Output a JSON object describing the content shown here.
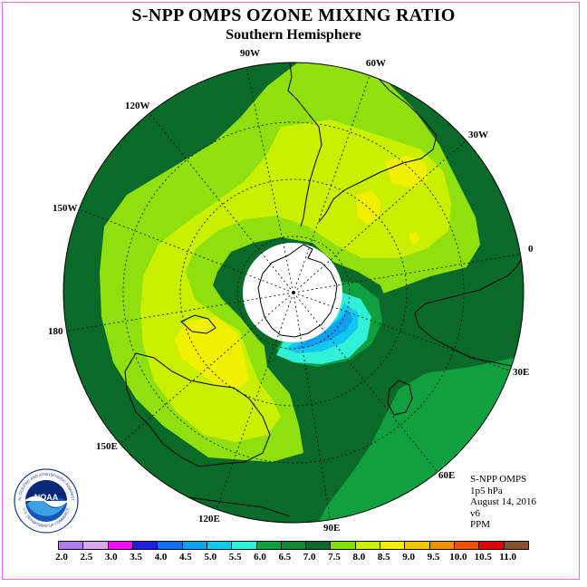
{
  "title": "S-NPP OMPS OZONE MIXING RATIO",
  "subtitle": "Southern Hemisphere",
  "longitude_labels": {
    "lon_90w": "90W",
    "lon_60w": "60W",
    "lon_120w": "120W",
    "lon_30w": "30W",
    "lon_150w": "150W",
    "lon_0": "0",
    "lon_180": "180",
    "lon_30e": "30E",
    "lon_150e": "150E",
    "lon_60e": "60E",
    "lon_120e": "120E",
    "lon_90e": "90E"
  },
  "info": {
    "product": "S-NPP OMPS",
    "level": "1p5 hPa",
    "date": "August 14, 2016",
    "version": "v6",
    "units": "PPM"
  },
  "logo": {
    "text": "NOAA",
    "ring_text": "NATIONAL OCEANIC AND ATMOSPHERIC ADMINISTRATION",
    "ring_text_bottom": "U.S. DEPARTMENT OF COMMERCE"
  },
  "colorbar": {
    "labels": [
      "2.0",
      "2.5",
      "3.0",
      "3.5",
      "4.0",
      "4.5",
      "5.0",
      "5.5",
      "6.0",
      "6.5",
      "7.0",
      "7.5",
      "8.0",
      "8.5",
      "9.0",
      "9.5",
      "10.0",
      "10.5",
      "11.0"
    ],
    "colors": [
      "#b07cf0",
      "#d8a8f0",
      "#f010f0",
      "#2020e0",
      "#1070f0",
      "#10a0f0",
      "#10c8f0",
      "#30f0d8",
      "#10a040",
      "#108838",
      "#0a6a2a",
      "#80e000",
      "#c8f000",
      "#f0f000",
      "#f0c800",
      "#f09000",
      "#f05000",
      "#e00000",
      "#8a5030"
    ]
  },
  "map_colors": {
    "dark_green": "#0a6a2a",
    "mid_green": "#10a040",
    "lime": "#90e010",
    "yellow_green": "#c8f000",
    "yellow": "#f0f000",
    "cyan": "#30f0d8",
    "light_blue": "#10c8f0",
    "blue": "#10a0f0"
  }
}
